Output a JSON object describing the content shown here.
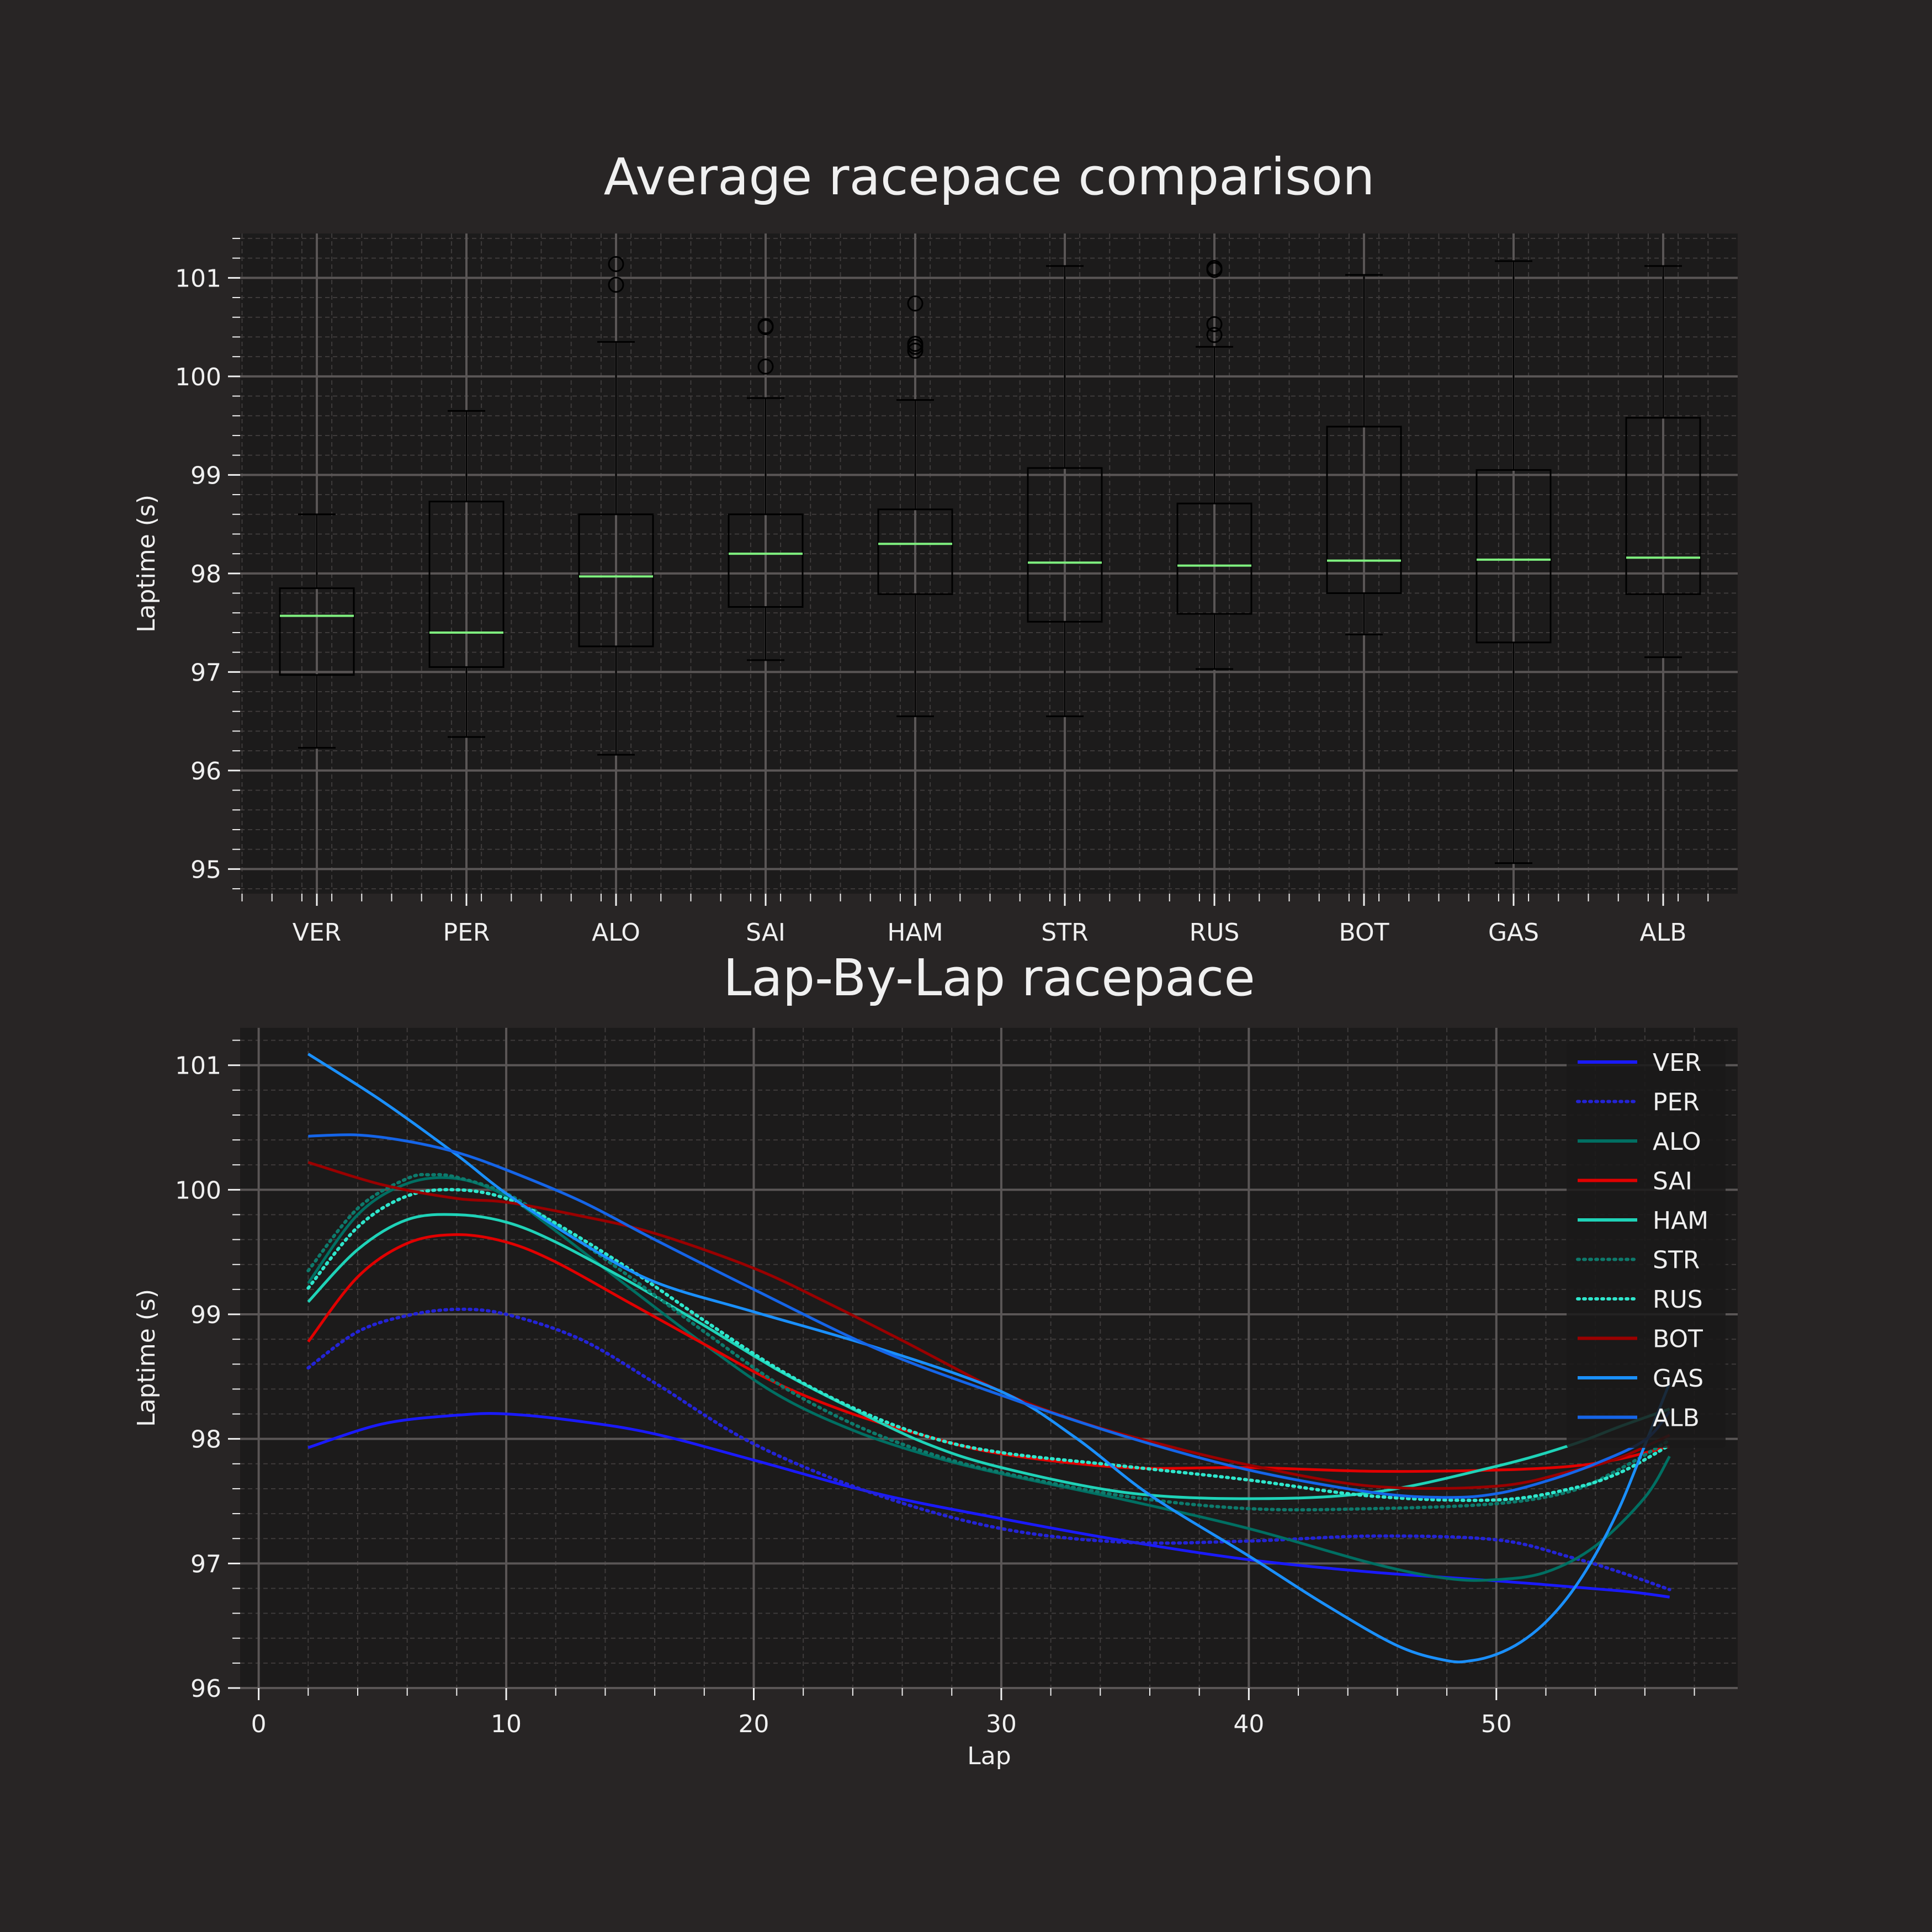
{
  "chart_data": [
    {
      "type": "box",
      "title": "Average racepace comparison",
      "ylabel": "Laptime (s)",
      "xlabel": "",
      "ylim": [
        94.75,
        101.45
      ],
      "yticks": [
        95,
        96,
        97,
        98,
        99,
        100,
        101
      ],
      "grid": true,
      "categories": [
        "VER",
        "PER",
        "ALO",
        "SAI",
        "HAM",
        "STR",
        "RUS",
        "BOT",
        "GAS",
        "ALB"
      ],
      "boxes": [
        {
          "driver": "VER",
          "min": 96.23,
          "q1": 96.97,
          "median": 97.57,
          "q3": 97.85,
          "max": 98.6,
          "fliers": []
        },
        {
          "driver": "PER",
          "min": 96.34,
          "q1": 97.05,
          "median": 97.4,
          "q3": 98.73,
          "max": 99.65,
          "fliers": []
        },
        {
          "driver": "ALO",
          "min": 96.16,
          "q1": 97.26,
          "median": 97.97,
          "q3": 98.6,
          "max": 100.35,
          "fliers": [
            100.93,
            101.14
          ]
        },
        {
          "driver": "SAI",
          "min": 97.12,
          "q1": 97.66,
          "median": 98.2,
          "q3": 98.6,
          "max": 99.78,
          "fliers": [
            100.1,
            100.5,
            100.51
          ]
        },
        {
          "driver": "HAM",
          "min": 96.55,
          "q1": 97.79,
          "median": 98.3,
          "q3": 98.65,
          "max": 99.76,
          "fliers": [
            100.26,
            100.3,
            100.33,
            100.74
          ]
        },
        {
          "driver": "STR",
          "min": 96.55,
          "q1": 97.51,
          "median": 98.11,
          "q3": 99.07,
          "max": 101.12,
          "fliers": []
        },
        {
          "driver": "RUS",
          "min": 97.03,
          "q1": 97.59,
          "median": 98.08,
          "q3": 98.71,
          "max": 100.3,
          "fliers": [
            100.42,
            100.53,
            101.08,
            101.1
          ]
        },
        {
          "driver": "BOT",
          "min": 97.38,
          "q1": 97.8,
          "median": 98.13,
          "q3": 99.49,
          "max": 101.03,
          "fliers": []
        },
        {
          "driver": "GAS",
          "min": 95.06,
          "q1": 97.3,
          "median": 98.14,
          "q3": 99.05,
          "max": 101.17,
          "fliers": []
        },
        {
          "driver": "ALB",
          "min": 97.15,
          "q1": 97.79,
          "median": 98.16,
          "q3": 99.58,
          "max": 101.12,
          "fliers": []
        }
      ],
      "colors": {
        "box": "#000000",
        "median": "#7ff07f",
        "flier": "#000000"
      }
    },
    {
      "type": "line",
      "title": "Lap-By-Lap racepace",
      "xlabel": "Lap",
      "ylabel": "Laptime (s)",
      "xlim": [
        -0.75,
        59.75
      ],
      "ylim": [
        96.0,
        101.3
      ],
      "xticks": [
        0,
        10,
        20,
        30,
        40,
        50
      ],
      "yticks": [
        96,
        97,
        98,
        99,
        100,
        101
      ],
      "grid": true,
      "legend_position": "top-right",
      "series": [
        {
          "name": "VER",
          "color": "#1a1aff",
          "dash": "solid",
          "x": [
            2,
            5,
            8,
            10,
            13,
            16,
            20,
            25,
            30,
            35,
            40,
            45,
            50,
            55,
            57
          ],
          "y": [
            97.93,
            98.12,
            98.19,
            98.2,
            98.14,
            98.04,
            97.83,
            97.56,
            97.36,
            97.18,
            97.03,
            96.93,
            96.86,
            96.78,
            96.73
          ]
        },
        {
          "name": "PER",
          "color": "#2424d6",
          "dash": "dotted",
          "x": [
            2,
            4,
            6,
            8,
            10,
            13,
            16,
            20,
            25,
            30,
            35,
            40,
            45,
            50,
            53,
            55,
            57
          ],
          "y": [
            98.57,
            98.86,
            98.99,
            99.04,
            99.0,
            98.8,
            98.45,
            97.96,
            97.55,
            97.28,
            97.17,
            97.18,
            97.22,
            97.19,
            97.05,
            96.93,
            96.79
          ]
        },
        {
          "name": "ALO",
          "color": "#006f62",
          "dash": "solid",
          "x": [
            2,
            4,
            6,
            8,
            10,
            12,
            15,
            18,
            21,
            24,
            27,
            30,
            35,
            40,
            45,
            48,
            50,
            52,
            54,
            56,
            57
          ],
          "y": [
            99.25,
            99.8,
            100.05,
            100.09,
            99.95,
            99.67,
            99.21,
            98.76,
            98.35,
            98.07,
            97.87,
            97.72,
            97.51,
            97.28,
            97.0,
            96.88,
            96.87,
            96.93,
            97.14,
            97.53,
            97.86
          ]
        },
        {
          "name": "SAI",
          "color": "#e10000",
          "dash": "solid",
          "x": [
            2,
            4,
            6,
            8,
            10,
            12,
            15,
            18,
            21,
            24,
            27,
            30,
            35,
            40,
            45,
            50,
            53,
            55,
            57
          ],
          "y": [
            98.78,
            99.3,
            99.57,
            99.64,
            99.58,
            99.42,
            99.09,
            98.76,
            98.44,
            98.2,
            98.02,
            97.88,
            97.77,
            97.77,
            97.74,
            97.75,
            97.78,
            97.84,
            97.94
          ]
        },
        {
          "name": "HAM",
          "color": "#1fd3b8",
          "dash": "solid",
          "x": [
            2,
            4,
            6,
            8,
            10,
            12,
            15,
            18,
            21,
            24,
            27,
            30,
            35,
            40,
            45,
            50,
            53,
            55,
            57
          ],
          "y": [
            99.1,
            99.52,
            99.76,
            99.8,
            99.74,
            99.58,
            99.26,
            98.91,
            98.55,
            98.24,
            97.96,
            97.77,
            97.57,
            97.52,
            97.57,
            97.78,
            97.95,
            98.1,
            98.24
          ]
        },
        {
          "name": "STR",
          "color": "#0d7a6c",
          "dash": "dotted",
          "x": [
            2,
            4,
            6,
            7,
            8,
            10,
            12,
            15,
            18,
            21,
            24,
            27,
            30,
            35,
            40,
            45,
            50,
            53,
            55,
            57
          ],
          "y": [
            99.35,
            99.85,
            100.09,
            100.12,
            100.1,
            99.97,
            99.72,
            99.3,
            98.86,
            98.44,
            98.12,
            97.89,
            97.73,
            97.54,
            97.44,
            97.44,
            97.48,
            97.58,
            97.76,
            97.99
          ]
        },
        {
          "name": "RUS",
          "color": "#2ee6cc",
          "dash": "dotted",
          "x": [
            2,
            4,
            6,
            8,
            10,
            12,
            15,
            18,
            21,
            24,
            27,
            30,
            35,
            40,
            45,
            50,
            53,
            55,
            57
          ],
          "y": [
            99.21,
            99.7,
            99.95,
            100.0,
            99.93,
            99.73,
            99.36,
            98.95,
            98.56,
            98.25,
            98.02,
            97.89,
            97.78,
            97.67,
            97.54,
            97.51,
            97.6,
            97.73,
            97.95
          ]
        },
        {
          "name": "BOT",
          "color": "#9a0000",
          "dash": "solid",
          "x": [
            2,
            5,
            8,
            10,
            13,
            16,
            20,
            23,
            26,
            30,
            33,
            36,
            40,
            45,
            50,
            53,
            55,
            57
          ],
          "y": [
            100.22,
            100.04,
            99.93,
            99.9,
            99.79,
            99.65,
            99.37,
            99.09,
            98.79,
            98.38,
            98.15,
            97.98,
            97.79,
            97.62,
            97.62,
            97.74,
            97.85,
            98.03
          ]
        },
        {
          "name": "GAS",
          "color": "#1a90ff",
          "dash": "solid",
          "x": [
            2,
            5,
            8,
            10,
            13,
            16,
            20,
            25,
            30,
            33,
            36,
            40,
            43,
            46,
            48,
            49,
            50,
            51,
            52,
            53,
            54,
            55,
            56,
            57
          ],
          "y": [
            101.09,
            100.71,
            100.28,
            99.97,
            99.58,
            99.26,
            99.02,
            98.73,
            98.38,
            98.01,
            97.55,
            97.06,
            96.68,
            96.34,
            96.22,
            96.22,
            96.27,
            96.37,
            96.53,
            96.76,
            97.07,
            97.46,
            97.95,
            98.45
          ]
        },
        {
          "name": "ALB",
          "color": "#1565e8",
          "dash": "solid",
          "x": [
            2,
            4,
            6,
            8,
            10,
            13,
            16,
            20,
            25,
            30,
            35,
            40,
            45,
            48,
            50,
            52,
            54,
            56,
            57
          ],
          "y": [
            100.43,
            100.44,
            100.39,
            100.3,
            100.16,
            99.91,
            99.6,
            99.2,
            98.72,
            98.35,
            98.02,
            97.75,
            97.57,
            97.53,
            97.56,
            97.66,
            97.8,
            97.99,
            98.22
          ]
        }
      ]
    }
  ]
}
